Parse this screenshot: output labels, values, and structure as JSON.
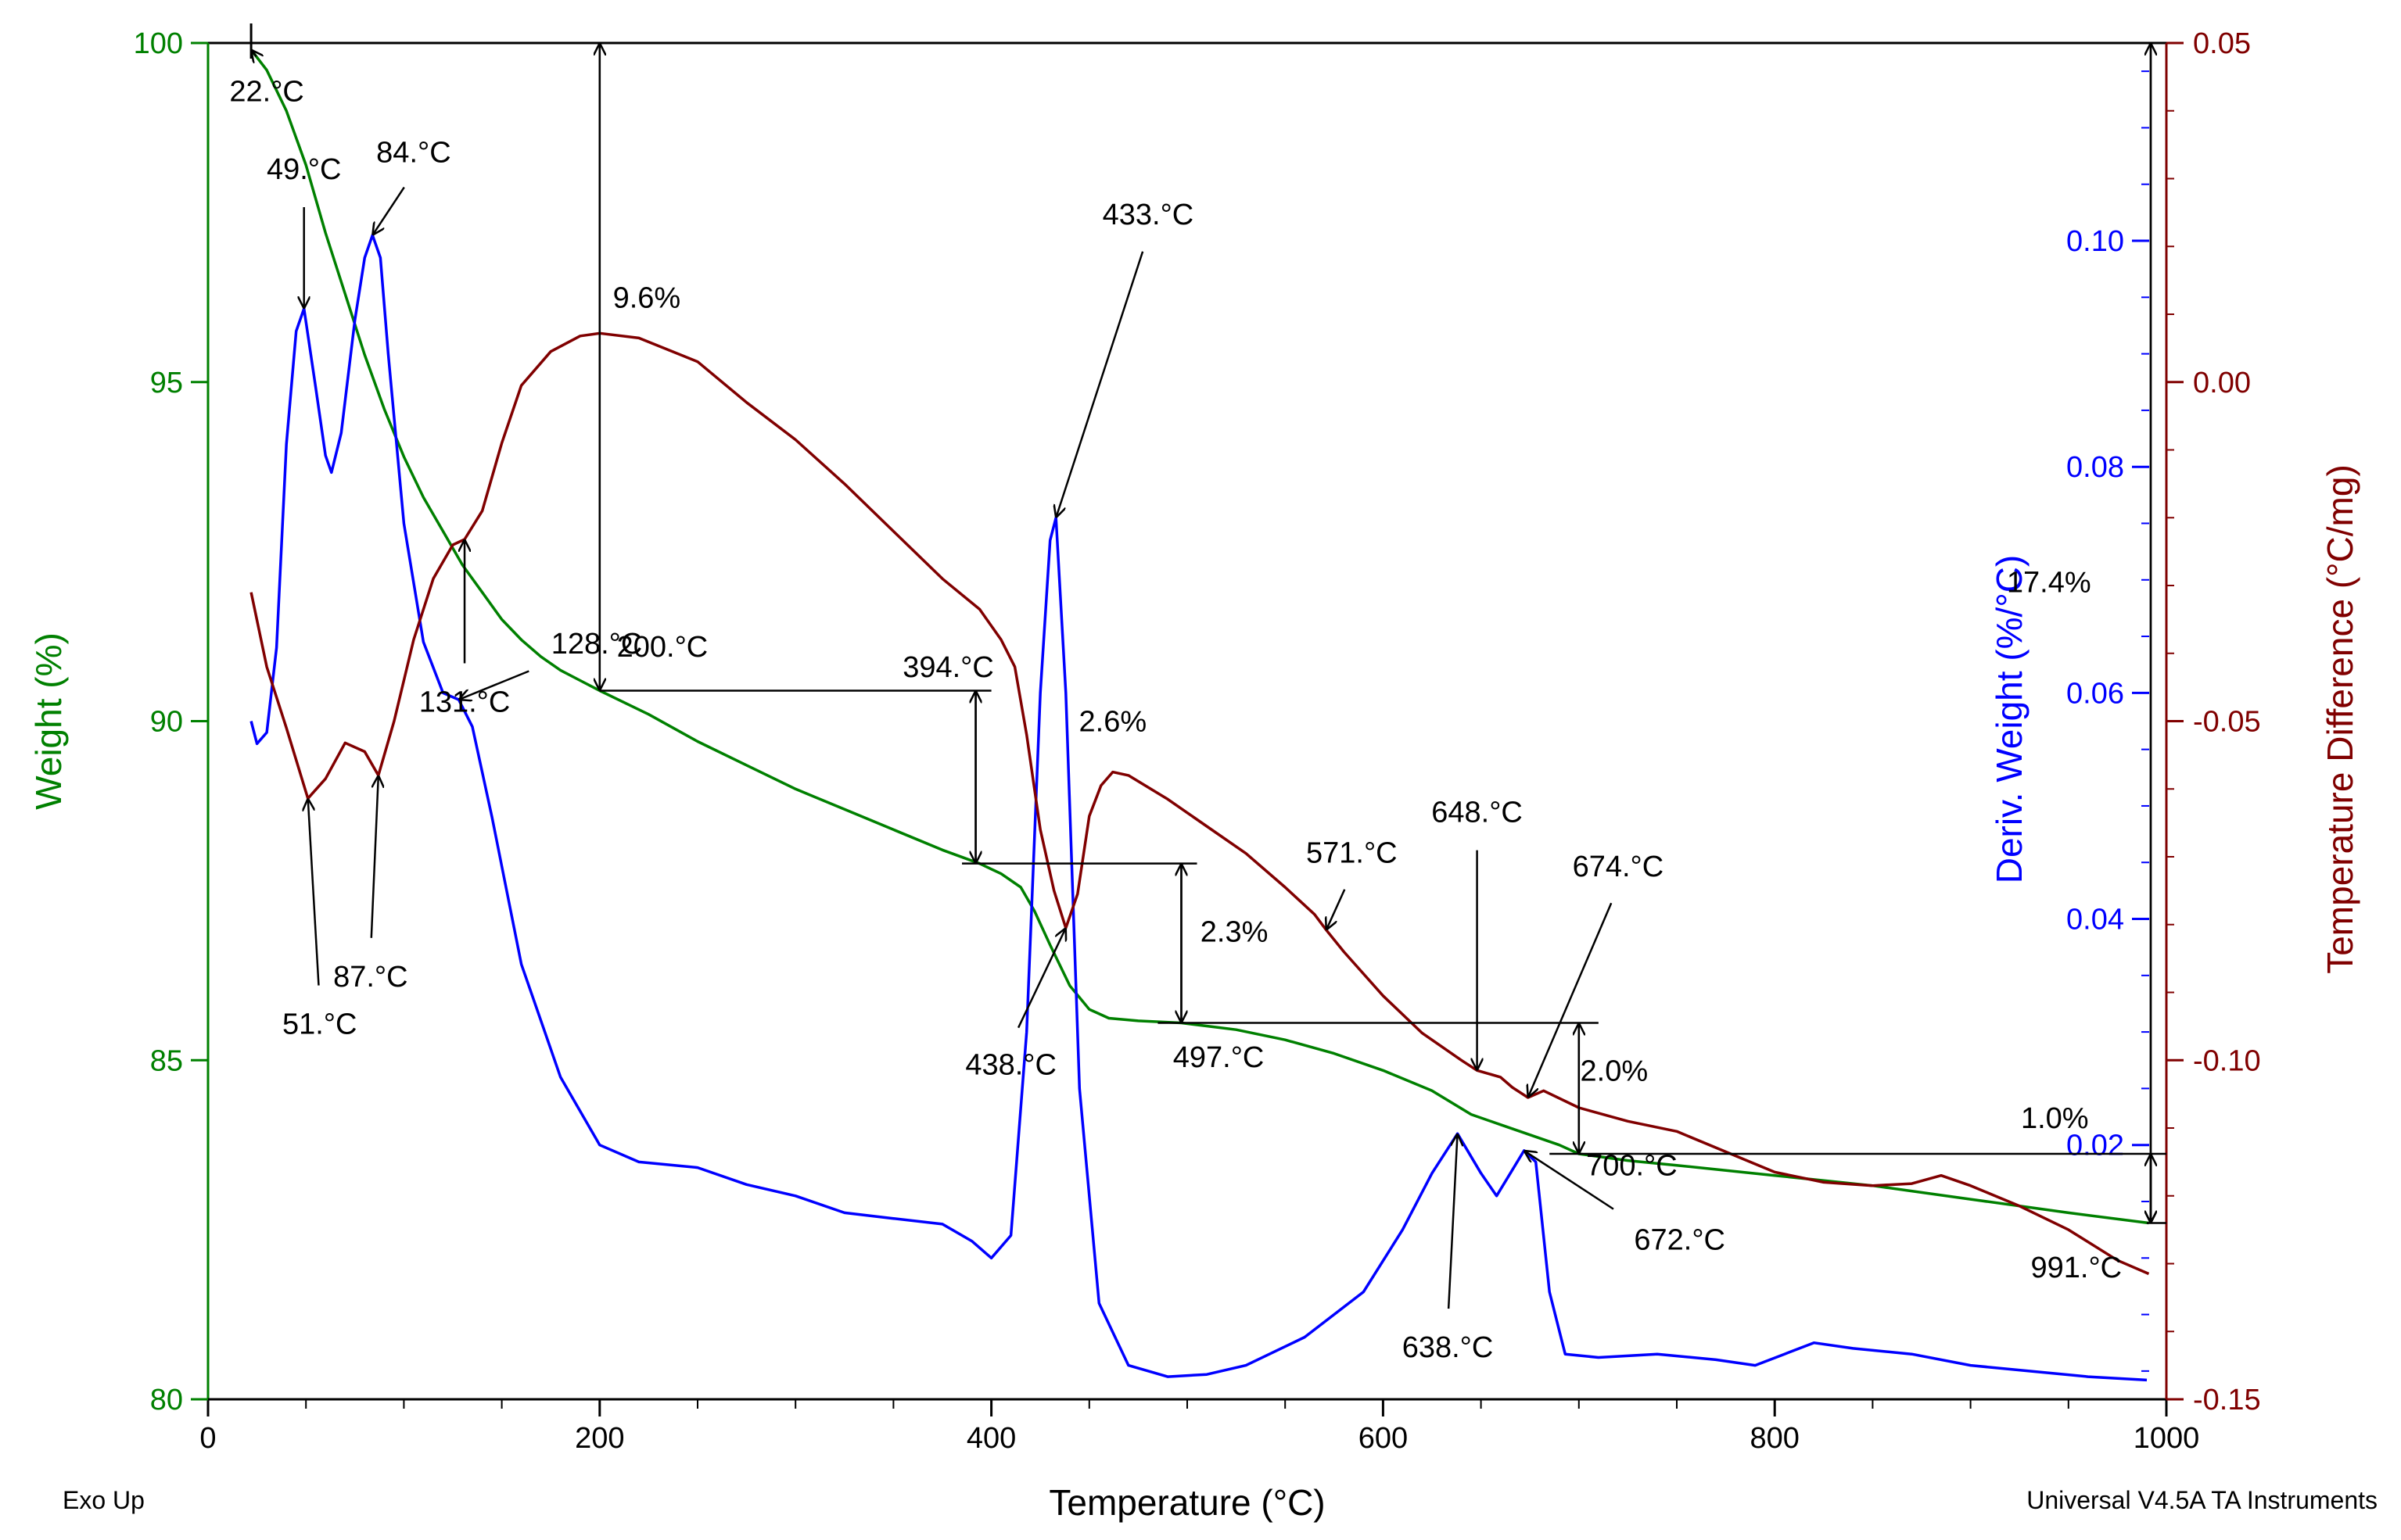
{
  "chart_data": {
    "type": "line",
    "x": {
      "label": "Temperature (°C)",
      "range": [
        0,
        1000
      ],
      "ticks": [
        0,
        200,
        400,
        600,
        800,
        1000
      ],
      "tick_labels": [
        "0",
        "200",
        "400",
        "600",
        "800",
        "1000"
      ],
      "minor_step": 50
    },
    "y_left": {
      "label": "Weight (%)",
      "color": "#008000",
      "range": [
        80,
        100
      ],
      "ticks": [
        80,
        85,
        90,
        95,
        100
      ],
      "tick_labels": [
        "80",
        "85",
        "90",
        "95",
        "100"
      ]
    },
    "y_right_inner": {
      "label": "Deriv. Weight (%/°C)",
      "color": "#0000ff",
      "range": [
        -0.0025,
        0.1175
      ],
      "ticks": [
        0.02,
        0.04,
        0.06,
        0.08,
        0.1
      ],
      "tick_labels": [
        "0.02",
        "0.04",
        "0.06",
        "0.08",
        "0.10"
      ],
      "minor_step": 0.005
    },
    "y_right_outer": {
      "label": "Temperature Difference (°C/mg)",
      "color": "#800000",
      "range": [
        -0.15,
        0.05
      ],
      "ticks": [
        -0.15,
        -0.1,
        -0.05,
        0.0,
        0.05
      ],
      "tick_labels": [
        "-0.15",
        "-0.10",
        "-0.05",
        "0.00",
        "0.05"
      ],
      "minor_step": 0.01
    },
    "series": [
      {
        "name": "Weight",
        "axis": "y_left",
        "color": "#008000",
        "points": [
          [
            22,
            99.9
          ],
          [
            30,
            99.6
          ],
          [
            40,
            99.0
          ],
          [
            50,
            98.2
          ],
          [
            60,
            97.2
          ],
          [
            70,
            96.3
          ],
          [
            80,
            95.4
          ],
          [
            90,
            94.6
          ],
          [
            100,
            93.9
          ],
          [
            110,
            93.3
          ],
          [
            120,
            92.8
          ],
          [
            130,
            92.3
          ],
          [
            140,
            91.9
          ],
          [
            150,
            91.5
          ],
          [
            160,
            91.2
          ],
          [
            170,
            90.95
          ],
          [
            180,
            90.75
          ],
          [
            190,
            90.6
          ],
          [
            200,
            90.45
          ],
          [
            225,
            90.1
          ],
          [
            250,
            89.7
          ],
          [
            275,
            89.35
          ],
          [
            300,
            89.0
          ],
          [
            325,
            88.7
          ],
          [
            350,
            88.4
          ],
          [
            375,
            88.1
          ],
          [
            394,
            87.9
          ],
          [
            405,
            87.75
          ],
          [
            415,
            87.55
          ],
          [
            422,
            87.2
          ],
          [
            430,
            86.7
          ],
          [
            440,
            86.1
          ],
          [
            450,
            85.75
          ],
          [
            460,
            85.62
          ],
          [
            475,
            85.58
          ],
          [
            497,
            85.55
          ],
          [
            525,
            85.45
          ],
          [
            550,
            85.3
          ],
          [
            575,
            85.1
          ],
          [
            600,
            84.85
          ],
          [
            625,
            84.55
          ],
          [
            645,
            84.2
          ],
          [
            660,
            84.05
          ],
          [
            675,
            83.9
          ],
          [
            690,
            83.75
          ],
          [
            700,
            83.62
          ],
          [
            725,
            83.52
          ],
          [
            750,
            83.45
          ],
          [
            800,
            83.3
          ],
          [
            850,
            83.15
          ],
          [
            900,
            82.95
          ],
          [
            950,
            82.75
          ],
          [
            991,
            82.6
          ]
        ]
      },
      {
        "name": "Deriv. Weight",
        "axis": "y_right_inner",
        "color": "#0000ff",
        "points": [
          [
            22,
            0.0575
          ],
          [
            25,
            0.0555
          ],
          [
            30,
            0.0565
          ],
          [
            35,
            0.064
          ],
          [
            40,
            0.082
          ],
          [
            45,
            0.092
          ],
          [
            49,
            0.094
          ],
          [
            55,
            0.087
          ],
          [
            60,
            0.081
          ],
          [
            63,
            0.0795
          ],
          [
            68,
            0.083
          ],
          [
            75,
            0.093
          ],
          [
            80,
            0.0985
          ],
          [
            84,
            0.1005
          ],
          [
            88,
            0.0985
          ],
          [
            92,
            0.09
          ],
          [
            100,
            0.075
          ],
          [
            110,
            0.0645
          ],
          [
            120,
            0.06
          ],
          [
            128,
            0.0594
          ],
          [
            135,
            0.057
          ],
          [
            145,
            0.049
          ],
          [
            160,
            0.036
          ],
          [
            180,
            0.026
          ],
          [
            200,
            0.02
          ],
          [
            220,
            0.0185
          ],
          [
            250,
            0.018
          ],
          [
            275,
            0.0165
          ],
          [
            300,
            0.0155
          ],
          [
            325,
            0.014
          ],
          [
            350,
            0.0135
          ],
          [
            375,
            0.013
          ],
          [
            390,
            0.0115
          ],
          [
            400,
            0.01
          ],
          [
            410,
            0.012
          ],
          [
            418,
            0.03
          ],
          [
            425,
            0.06
          ],
          [
            430,
            0.0735
          ],
          [
            433,
            0.0755
          ],
          [
            438,
            0.06
          ],
          [
            445,
            0.025
          ],
          [
            455,
            0.006
          ],
          [
            470,
            0.0005
          ],
          [
            490,
            -0.0005
          ],
          [
            510,
            -0.0003
          ],
          [
            530,
            0.0005
          ],
          [
            560,
            0.003
          ],
          [
            590,
            0.007
          ],
          [
            610,
            0.0125
          ],
          [
            625,
            0.0175
          ],
          [
            638,
            0.021
          ],
          [
            650,
            0.0175
          ],
          [
            658,
            0.0155
          ],
          [
            665,
            0.0175
          ],
          [
            672,
            0.0195
          ],
          [
            678,
            0.0185
          ],
          [
            685,
            0.007
          ],
          [
            693,
            0.0015
          ],
          [
            710,
            0.0012
          ],
          [
            740,
            0.0015
          ],
          [
            770,
            0.001
          ],
          [
            790,
            0.0005
          ],
          [
            805,
            0.0015
          ],
          [
            820,
            0.0025
          ],
          [
            840,
            0.002
          ],
          [
            870,
            0.0015
          ],
          [
            900,
            0.0005
          ],
          [
            930,
            0.0
          ],
          [
            960,
            -0.0005
          ],
          [
            990,
            -0.0008
          ]
        ]
      },
      {
        "name": "Temperature Difference",
        "axis": "y_right_outer",
        "color": "#800000",
        "points": [
          [
            22,
            -0.031
          ],
          [
            30,
            -0.042
          ],
          [
            40,
            -0.051
          ],
          [
            51,
            -0.0614
          ],
          [
            60,
            -0.0585
          ],
          [
            70,
            -0.0532
          ],
          [
            80,
            -0.0545
          ],
          [
            87,
            -0.058
          ],
          [
            95,
            -0.05
          ],
          [
            105,
            -0.038
          ],
          [
            115,
            -0.029
          ],
          [
            125,
            -0.024
          ],
          [
            131,
            -0.0232
          ],
          [
            140,
            -0.019
          ],
          [
            150,
            -0.009
          ],
          [
            160,
            -0.0005
          ],
          [
            175,
            0.0045
          ],
          [
            190,
            0.0068
          ],
          [
            200,
            0.0072
          ],
          [
            220,
            0.0065
          ],
          [
            250,
            0.003
          ],
          [
            275,
            -0.003
          ],
          [
            300,
            -0.0085
          ],
          [
            325,
            -0.015
          ],
          [
            350,
            -0.022
          ],
          [
            375,
            -0.029
          ],
          [
            394,
            -0.0335
          ],
          [
            405,
            -0.038
          ],
          [
            412,
            -0.042
          ],
          [
            418,
            -0.052
          ],
          [
            425,
            -0.066
          ],
          [
            432,
            -0.075
          ],
          [
            438,
            -0.0805
          ],
          [
            444,
            -0.0755
          ],
          [
            450,
            -0.064
          ],
          [
            456,
            -0.0595
          ],
          [
            462,
            -0.0575
          ],
          [
            470,
            -0.058
          ],
          [
            490,
            -0.0615
          ],
          [
            510,
            -0.0655
          ],
          [
            530,
            -0.0695
          ],
          [
            550,
            -0.0745
          ],
          [
            565,
            -0.0785
          ],
          [
            571,
            -0.0808
          ],
          [
            580,
            -0.084
          ],
          [
            600,
            -0.0905
          ],
          [
            620,
            -0.096
          ],
          [
            640,
            -0.1
          ],
          [
            648,
            -0.1015
          ],
          [
            660,
            -0.1025
          ],
          [
            666,
            -0.104
          ],
          [
            674,
            -0.1055
          ],
          [
            682,
            -0.1045
          ],
          [
            700,
            -0.107
          ],
          [
            725,
            -0.109
          ],
          [
            750,
            -0.1105
          ],
          [
            775,
            -0.1135
          ],
          [
            800,
            -0.1165
          ],
          [
            825,
            -0.118
          ],
          [
            850,
            -0.1185
          ],
          [
            870,
            -0.1182
          ],
          [
            885,
            -0.117
          ],
          [
            900,
            -0.1185
          ],
          [
            925,
            -0.1215
          ],
          [
            950,
            -0.125
          ],
          [
            975,
            -0.1295
          ],
          [
            991,
            -0.1315
          ]
        ]
      }
    ],
    "annotations": {
      "peak_labels": [
        {
          "text": "22.°C",
          "series": "Weight",
          "x": 22,
          "y": 99.9,
          "tx": 30,
          "ty": 99.6
        },
        {
          "text": "49.°C",
          "series": "Deriv. Weight",
          "x": 49,
          "y": 0.094,
          "tx": 49,
          "ty": 0.1045
        },
        {
          "text": "84.°C",
          "series": "Deriv. Weight",
          "x": 84,
          "y": 0.1005,
          "tx": 105,
          "ty": 0.106
        },
        {
          "text": "128.°C",
          "series": "Deriv. Weight",
          "x": 128,
          "y": 0.0594,
          "tx": 172,
          "ty": 0.0625
        },
        {
          "text": "51.°C",
          "series": "Temperature Difference",
          "x": 51,
          "y": -0.0614,
          "tx": 57,
          "ty": -0.0915
        },
        {
          "text": "87.°C",
          "series": "Temperature Difference",
          "x": 87,
          "y": -0.058,
          "tx": 83,
          "ty": -0.0845
        },
        {
          "text": "131.°C",
          "series": "Temperature Difference",
          "x": 131,
          "y": -0.0232,
          "tx": 131,
          "ty": -0.044
        },
        {
          "text": "433.°C",
          "series": "Deriv. Weight",
          "x": 433,
          "y": 0.0755,
          "tx": 480,
          "ty": 0.1005
        },
        {
          "text": "438.°C",
          "series": "Temperature Difference",
          "x": 438,
          "y": -0.0805,
          "tx": 410,
          "ty": -0.0975
        },
        {
          "text": "571.°C",
          "series": "Temperature Difference",
          "x": 571,
          "y": -0.0808,
          "tx": 584,
          "ty": -0.0725
        },
        {
          "text": "648.°C",
          "series": "Temperature Difference",
          "x": 648,
          "y": -0.1015,
          "tx": 648,
          "ty": -0.0665
        },
        {
          "text": "674.°C",
          "series": "Temperature Difference",
          "x": 674,
          "y": -0.1055,
          "tx": 720,
          "ty": -0.0745
        },
        {
          "text": "638.°C",
          "series": "Deriv. Weight",
          "x": 638,
          "y": 0.021,
          "tx": 633,
          "ty": 0.004
        },
        {
          "text": "672.°C",
          "series": "Deriv. Weight",
          "x": 672,
          "y": 0.0195,
          "tx": 725,
          "ty": 0.0135
        }
      ],
      "steps": [
        {
          "label": "9.6%",
          "x_arrow": 200,
          "x_start": 200,
          "x_end": 400,
          "w_top": 100.0,
          "w_bottom": 90.45,
          "temp_label": "200.°C",
          "pct_at": [
            224,
            96.1
          ],
          "temp_at": [
            232,
            90.95
          ]
        },
        {
          "label": "2.6%",
          "x_arrow": 392,
          "x_start": 385,
          "x_end": 505,
          "w_top": 90.45,
          "w_bottom": 87.9,
          "temp_label": "394.°C",
          "pct_at": [
            462,
            89.85
          ],
          "temp_at": [
            378,
            90.65
          ]
        },
        {
          "label": "2.3%",
          "x_arrow": 497,
          "x_start": 485,
          "x_end": 710,
          "w_top": 87.9,
          "w_bottom": 85.55,
          "temp_label": "497.°C",
          "pct_at": [
            524,
            86.75
          ],
          "temp_at": [
            516,
            84.9
          ]
        },
        {
          "label": "2.0%",
          "x_arrow": 700,
          "x_start": 685,
          "x_end": 1000,
          "w_top": 85.55,
          "w_bottom": 83.62,
          "temp_label": "700.°C",
          "pct_at": [
            718,
            84.7
          ],
          "temp_at": [
            727,
            83.3
          ]
        },
        {
          "label": "1.0%",
          "x_arrow": 992,
          "x_start": 990,
          "x_end": 1000,
          "w_top": 83.62,
          "w_bottom": 82.6,
          "temp_label": "991.°C",
          "pct_at": [
            943,
            84.0
          ],
          "temp_at": [
            954,
            81.8
          ]
        }
      ],
      "total": {
        "label": "17.4%",
        "x": 992,
        "w_top": 100.0,
        "w_bottom": 82.6,
        "text_at": [
          940,
          91.9
        ]
      }
    },
    "footer_left": "Exo Up",
    "footer_right": "Universal V4.5A TA Instruments"
  }
}
